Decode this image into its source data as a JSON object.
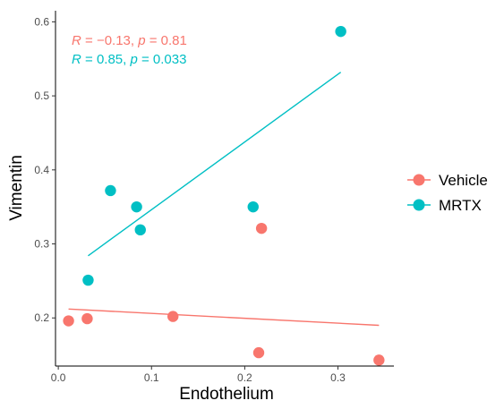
{
  "chart_data": {
    "type": "scatter",
    "xlabel": "Endothelium",
    "ylabel": "Vimentin",
    "xlim": [
      -0.003,
      0.36
    ],
    "ylim": [
      0.135,
      0.615
    ],
    "xticks": [
      0.0,
      0.1,
      0.2,
      0.3
    ],
    "xtick_labels": [
      "0.0",
      "0.1",
      "0.2",
      "0.3"
    ],
    "yticks": [
      0.2,
      0.3,
      0.4,
      0.5,
      0.6
    ],
    "ytick_labels": [
      "0.2",
      "0.3",
      "0.4",
      "0.5",
      "0.6"
    ],
    "grid": false,
    "legend_position": "right",
    "series": [
      {
        "name": "Vehicle",
        "color": "#F8766D",
        "points": [
          {
            "x": 0.011,
            "y": 0.196
          },
          {
            "x": 0.031,
            "y": 0.199
          },
          {
            "x": 0.123,
            "y": 0.202
          },
          {
            "x": 0.215,
            "y": 0.153
          },
          {
            "x": 0.218,
            "y": 0.321
          },
          {
            "x": 0.344,
            "y": 0.143
          }
        ],
        "fit": {
          "x": [
            0.011,
            0.344
          ],
          "y": [
            0.212,
            0.19
          ]
        },
        "stat": {
          "R": "−0.13",
          "p": "0.81"
        }
      },
      {
        "name": "MRTX",
        "color": "#00BFC4",
        "points": [
          {
            "x": 0.032,
            "y": 0.251
          },
          {
            "x": 0.056,
            "y": 0.372
          },
          {
            "x": 0.084,
            "y": 0.35
          },
          {
            "x": 0.088,
            "y": 0.319
          },
          {
            "x": 0.209,
            "y": 0.35
          },
          {
            "x": 0.303,
            "y": 0.587
          }
        ],
        "fit": {
          "x": [
            0.032,
            0.303
          ],
          "y": [
            0.284,
            0.532
          ]
        },
        "stat": {
          "R": "0.85",
          "p": "0.033"
        }
      }
    ]
  }
}
